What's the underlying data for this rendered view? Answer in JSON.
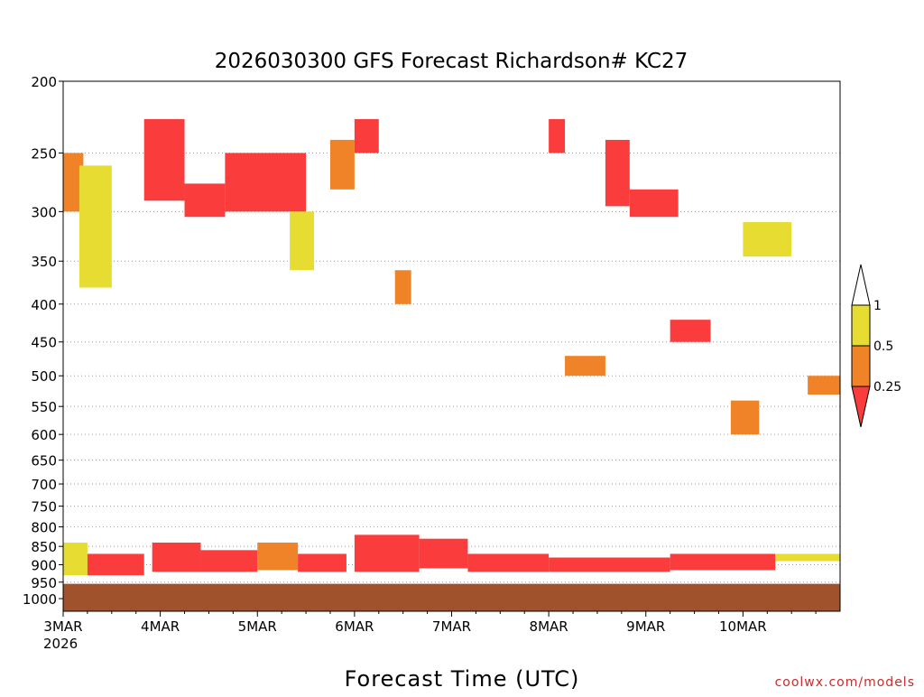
{
  "chart_data": {
    "type": "heatmap",
    "title": "2026030300 GFS Forecast Richardson# KC27",
    "xlabel": "Forecast Time (UTC)",
    "ylabel": "",
    "x_unit": "hours",
    "x_ticks": [
      {
        "label": "3MAR",
        "hour": 0
      },
      {
        "label": "4MAR",
        "hour": 24
      },
      {
        "label": "5MAR",
        "hour": 48
      },
      {
        "label": "6MAR",
        "hour": 72
      },
      {
        "label": "7MAR",
        "hour": 96
      },
      {
        "label": "8MAR",
        "hour": 120
      },
      {
        "label": "9MAR",
        "hour": 144
      },
      {
        "label": "10MAR",
        "hour": 168
      }
    ],
    "x_sublabel": "2026",
    "xlim": [
      0,
      192
    ],
    "y_unit": "hPa",
    "y_ticks": [
      200,
      250,
      300,
      350,
      400,
      450,
      500,
      550,
      600,
      650,
      700,
      750,
      800,
      850,
      900,
      950,
      1000
    ],
    "ylim": [
      200,
      1040
    ],
    "y_scale": "log",
    "y_inverted": true,
    "grid": true,
    "ground_pressure_hpa": 955,
    "ground_color": "#a0522d",
    "colorbar": {
      "levels": [
        "1",
        "0.5",
        "0.25"
      ],
      "colors": {
        "above_1": "#ffffff",
        "0.5_to_1": "#e6dc32",
        "0.25_to_0.5": "#f08228",
        "below_0.25": "#fa3c3c"
      },
      "position": "right"
    },
    "patches": [
      {
        "hour": [
          0,
          5
        ],
        "p": [
          250,
          300
        ],
        "value": 0.45
      },
      {
        "hour": [
          4,
          12
        ],
        "p": [
          260,
          380
        ],
        "value": 0.7
      },
      {
        "hour": [
          20,
          30
        ],
        "p": [
          225,
          290
        ],
        "value": 0.2
      },
      {
        "hour": [
          30,
          40
        ],
        "p": [
          275,
          305
        ],
        "value": 0.15
      },
      {
        "hour": [
          40,
          60
        ],
        "p": [
          250,
          300
        ],
        "value": 0.2
      },
      {
        "hour": [
          56,
          62
        ],
        "p": [
          300,
          360
        ],
        "value": 0.7
      },
      {
        "hour": [
          66,
          72
        ],
        "p": [
          240,
          280
        ],
        "value": 0.45
      },
      {
        "hour": [
          72,
          78
        ],
        "p": [
          225,
          250
        ],
        "value": 0.15
      },
      {
        "hour": [
          82,
          86
        ],
        "p": [
          360,
          400
        ],
        "value": 0.45
      },
      {
        "hour": [
          120,
          124
        ],
        "p": [
          225,
          250
        ],
        "value": 0.2
      },
      {
        "hour": [
          134,
          140
        ],
        "p": [
          240,
          295
        ],
        "value": 0.15
      },
      {
        "hour": [
          140,
          152
        ],
        "p": [
          280,
          305
        ],
        "value": 0.15
      },
      {
        "hour": [
          168,
          180
        ],
        "p": [
          310,
          345
        ],
        "value": 0.7
      },
      {
        "hour": [
          124,
          134
        ],
        "p": [
          470,
          500
        ],
        "value": 0.45
      },
      {
        "hour": [
          150,
          160
        ],
        "p": [
          420,
          450
        ],
        "value": 0.2
      },
      {
        "hour": [
          165,
          172
        ],
        "p": [
          540,
          600
        ],
        "value": 0.45
      },
      {
        "hour": [
          184,
          192
        ],
        "p": [
          500,
          530
        ],
        "value": 0.45
      },
      {
        "hour": [
          0,
          6
        ],
        "p": [
          840,
          930
        ],
        "value": 0.7
      },
      {
        "hour": [
          6,
          20
        ],
        "p": [
          870,
          930
        ],
        "value": 0.2
      },
      {
        "hour": [
          22,
          34
        ],
        "p": [
          840,
          920
        ],
        "value": 0.2
      },
      {
        "hour": [
          34,
          48
        ],
        "p": [
          860,
          920
        ],
        "value": 0.2
      },
      {
        "hour": [
          48,
          58
        ],
        "p": [
          840,
          915
        ],
        "value": 0.45
      },
      {
        "hour": [
          58,
          70
        ],
        "p": [
          870,
          920
        ],
        "value": 0.2
      },
      {
        "hour": [
          72,
          88
        ],
        "p": [
          820,
          920
        ],
        "value": 0.2
      },
      {
        "hour": [
          88,
          100
        ],
        "p": [
          830,
          910
        ],
        "value": 0.15
      },
      {
        "hour": [
          100,
          120
        ],
        "p": [
          870,
          920
        ],
        "value": 0.2
      },
      {
        "hour": [
          120,
          150
        ],
        "p": [
          880,
          920
        ],
        "value": 0.2
      },
      {
        "hour": [
          150,
          176
        ],
        "p": [
          870,
          915
        ],
        "value": 0.2
      },
      {
        "hour": [
          176,
          192
        ],
        "p": [
          870,
          890
        ],
        "value": 0.7
      }
    ]
  },
  "credit": "coolwx.com/models"
}
